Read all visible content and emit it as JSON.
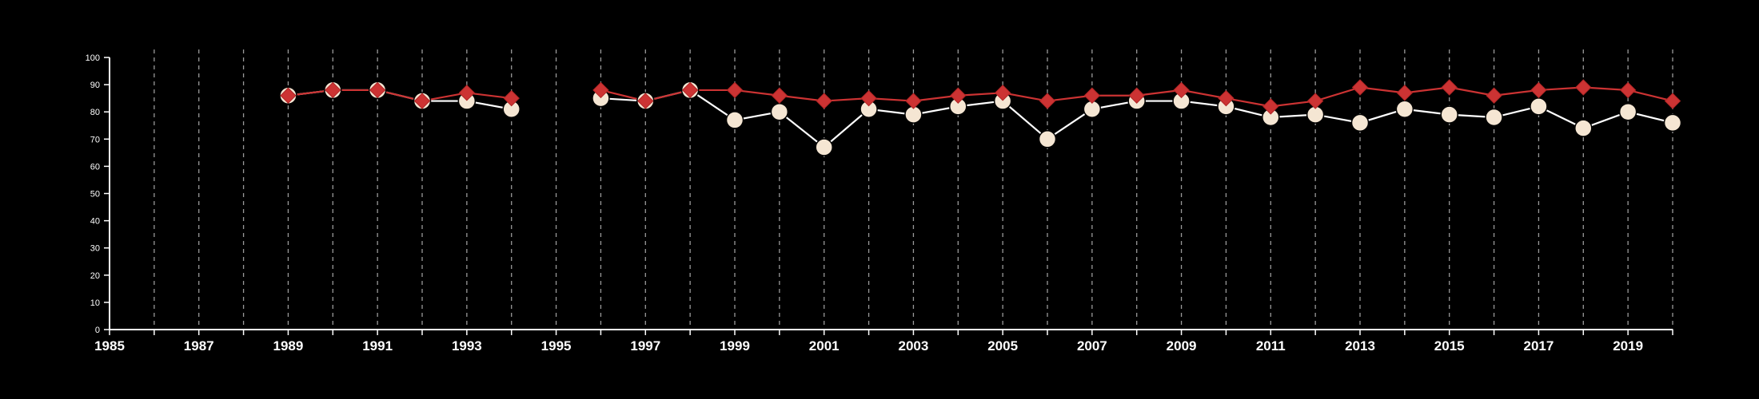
{
  "chart_data": {
    "type": "line",
    "title": "",
    "xlabel": "",
    "ylabel": "",
    "xlim": [
      1985,
      2020
    ],
    "ylim": [
      0,
      100
    ],
    "yticks": [
      0,
      10,
      20,
      30,
      40,
      50,
      60,
      70,
      80,
      90,
      100
    ],
    "xticks": [
      1985,
      1987,
      1989,
      1991,
      1993,
      1995,
      1997,
      1999,
      2001,
      2003,
      2005,
      2007,
      2009,
      2011,
      2013,
      2015,
      2017,
      2019
    ],
    "grid_x": true,
    "grid_y": false,
    "legend": "none",
    "series": [
      {
        "color": "#cc3333",
        "marker": "diamond",
        "line_color": "#cc3333",
        "x": [
          1989,
          1990,
          1991,
          1992,
          1993,
          1994,
          1996,
          1997,
          1998,
          1999,
          2000,
          2001,
          2002,
          2003,
          2004,
          2005,
          2006,
          2007,
          2008,
          2009,
          2010,
          2011,
          2012,
          2013,
          2014,
          2015,
          2016,
          2017,
          2018,
          2019,
          2020
        ],
        "values": [
          86,
          88,
          88,
          84,
          87,
          85,
          88,
          84,
          88,
          88,
          86,
          84,
          85,
          84,
          86,
          87,
          84,
          86,
          86,
          88,
          85,
          82,
          84,
          89,
          87,
          89,
          86,
          88,
          89,
          88,
          84
        ]
      },
      {
        "color": "#f5e6d3",
        "marker": "circle",
        "line_color": "#ffffff",
        "x": [
          1989,
          1990,
          1991,
          1992,
          1993,
          1994,
          1996,
          1997,
          1998,
          1999,
          2000,
          2001,
          2002,
          2003,
          2004,
          2005,
          2006,
          2007,
          2008,
          2009,
          2010,
          2011,
          2012,
          2013,
          2014,
          2015,
          2016,
          2017,
          2018,
          2019,
          2020
        ],
        "values": [
          86,
          88,
          88,
          84,
          84,
          81,
          85,
          84,
          88,
          77,
          80,
          67,
          81,
          79,
          82,
          84,
          70,
          81,
          84,
          84,
          82,
          78,
          79,
          76,
          81,
          79,
          78,
          82,
          74,
          80,
          76
        ]
      }
    ]
  }
}
